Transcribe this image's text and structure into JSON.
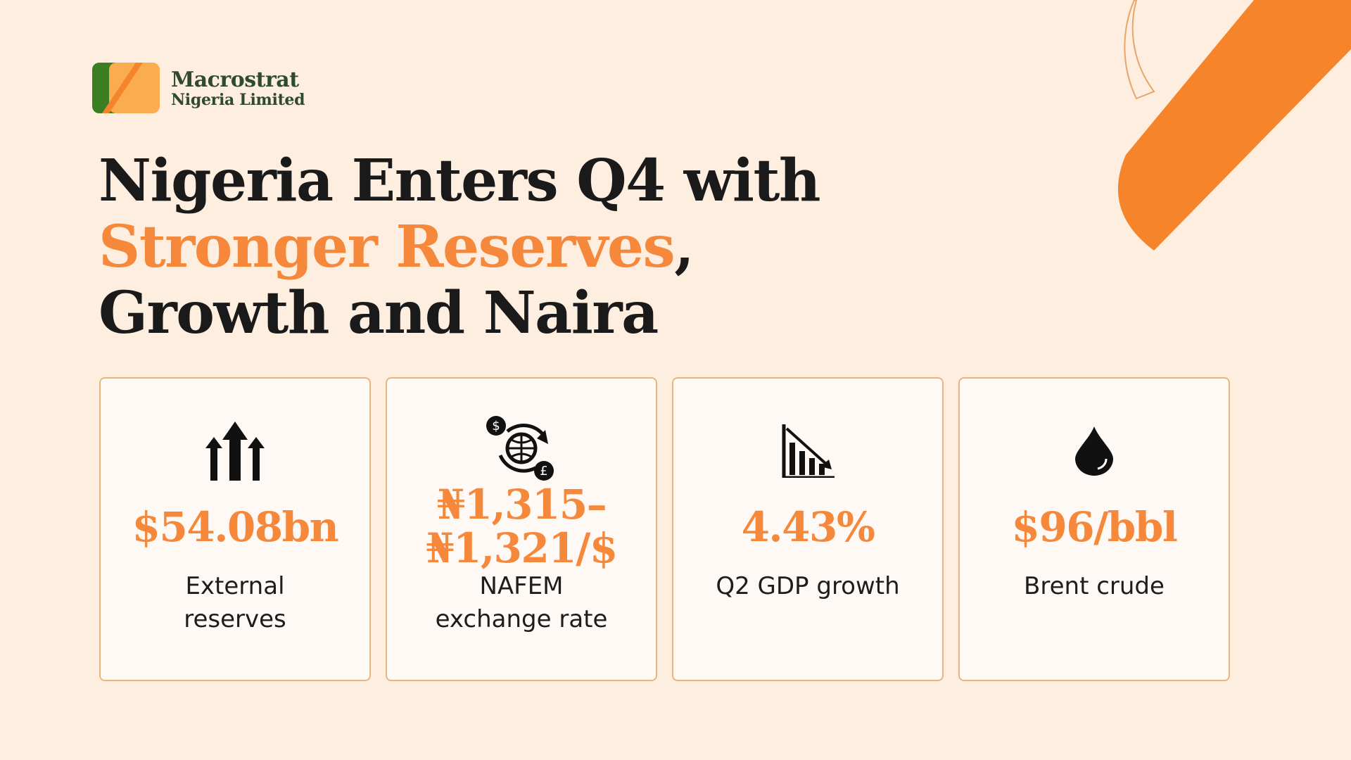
{
  "logo": {
    "name": "Macrostrat",
    "tagline": "Nigeria Limited"
  },
  "headline": {
    "line1": "Nigeria Enters Q4 with",
    "highlight": "Stronger Reserves",
    "punctuation": ",",
    "line3": "Growth and Naira"
  },
  "cards": [
    {
      "value": [
        "$54.08bn"
      ],
      "label": [
        "External",
        "reserves"
      ]
    },
    {
      "value": [
        "₦1,315–",
        "₦1,321/$"
      ],
      "label": [
        "NAFEM",
        "exchange rate"
      ]
    },
    {
      "value": [
        "4.43%"
      ],
      "label": [
        "Q2 GDP growth"
      ]
    },
    {
      "value": [
        "$96/bbl"
      ],
      "label": [
        "Brent crude"
      ]
    }
  ]
}
